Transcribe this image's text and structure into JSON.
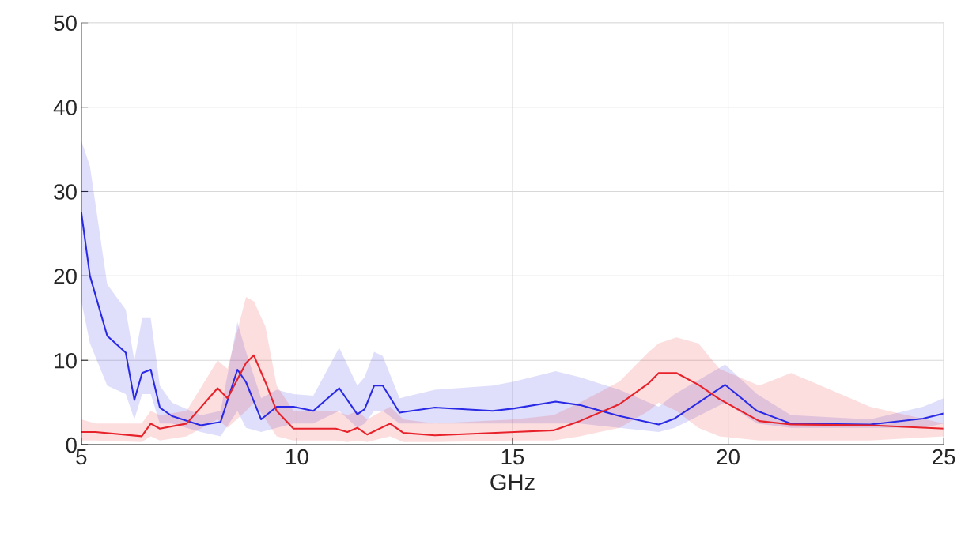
{
  "chart_data": {
    "type": "line",
    "xlabel": "GHz",
    "xlim": [
      5,
      25
    ],
    "xticks": [
      5,
      10,
      15,
      20,
      25
    ],
    "ylim": [
      0,
      50
    ],
    "yticks": [
      0,
      10,
      20,
      30,
      40,
      50
    ],
    "grid": true,
    "series": [
      {
        "color": "#2a2ae6",
        "x": [
          5,
          5.2,
          5.6,
          6.03,
          6.23,
          6.41,
          6.61,
          6.82,
          7.1,
          7.77,
          8.23,
          8.62,
          8.82,
          9.17,
          9.53,
          9.92,
          10.38,
          10.98,
          11.4,
          11.57,
          11.79,
          11.99,
          12.38,
          13.2,
          14.54,
          15.04,
          16.0,
          16.56,
          17.48,
          18.39,
          18.76,
          19.93,
          20.67,
          21.46,
          23.29,
          24.52,
          25
        ],
        "values": [
          27.5,
          20,
          12.9,
          10.9,
          5.3,
          8.5,
          8.9,
          4.4,
          3.4,
          2.3,
          2.7,
          8.9,
          7.4,
          3.0,
          4.5,
          4.5,
          4.0,
          6.7,
          3.6,
          4.2,
          7.0,
          7.0,
          3.8,
          4.4,
          4.0,
          4.3,
          5.1,
          4.7,
          3.4,
          2.4,
          3.1,
          7.1,
          4.0,
          2.5,
          2.4,
          3.1,
          3.7
        ],
        "lower": [
          17,
          12,
          7,
          6,
          3,
          6,
          6,
          2.5,
          2.5,
          1.5,
          1,
          4,
          2,
          1.5,
          2,
          2.5,
          2.5,
          4,
          2,
          2.5,
          4,
          4,
          2.5,
          2.5,
          2.5,
          2.5,
          2.5,
          2.5,
          2,
          1.5,
          2,
          5,
          2.5,
          2,
          2,
          2,
          2.5
        ],
        "upper": [
          36,
          33,
          19,
          16,
          10,
          15,
          15,
          7,
          5,
          3.5,
          4,
          14.5,
          11,
          5.5,
          6.5,
          6,
          5.8,
          11.5,
          7,
          8,
          11,
          10.5,
          5.5,
          6.5,
          7,
          7.5,
          8.7,
          8,
          6.5,
          4.5,
          6,
          9.5,
          6,
          3.5,
          3,
          4.5,
          5.5
        ]
      },
      {
        "color": "#e8222a",
        "x": [
          5,
          5.33,
          6.4,
          6.61,
          6.82,
          7.44,
          8.16,
          8.39,
          8.82,
          9.0,
          9.27,
          9.53,
          9.92,
          10.9,
          11.17,
          11.4,
          11.63,
          12.16,
          12.47,
          13.2,
          15.04,
          15.95,
          16.56,
          17.48,
          18.16,
          18.39,
          18.8,
          19.31,
          19.8,
          20.72,
          21.46,
          23.29,
          25
        ],
        "values": [
          1.5,
          1.5,
          1.0,
          2.5,
          1.9,
          2.5,
          6.7,
          5.5,
          9.7,
          10.6,
          7.4,
          4.0,
          1.9,
          1.9,
          1.5,
          2.0,
          1.2,
          2.5,
          1.4,
          1.1,
          1.5,
          1.7,
          2.8,
          4.8,
          7.3,
          8.5,
          8.5,
          7.1,
          5.4,
          2.8,
          2.4,
          2.3,
          1.9
        ],
        "lower": [
          0.5,
          0.5,
          0.3,
          1,
          0.5,
          1,
          3,
          2,
          4,
          5,
          3,
          1,
          0.5,
          0.5,
          0.3,
          0.5,
          0.3,
          1,
          0.3,
          0.3,
          0.5,
          0.5,
          1,
          2,
          4,
          5,
          4,
          2,
          1,
          0.5,
          0.5,
          0.5,
          1
        ],
        "upper": [
          3,
          2.5,
          2.5,
          4,
          3.5,
          4,
          10,
          9,
          17.5,
          17,
          14,
          7,
          4,
          4,
          3.5,
          4,
          3,
          4.5,
          3,
          2.5,
          3,
          3.5,
          5,
          7.5,
          11,
          12,
          12.7,
          12,
          9,
          7,
          8.5,
          4.5,
          2.5
        ]
      }
    ]
  }
}
